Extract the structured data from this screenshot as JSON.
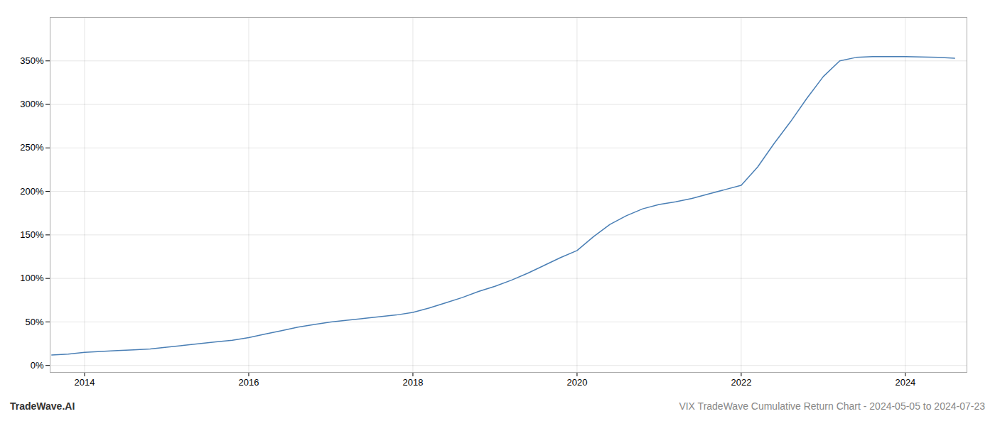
{
  "chart_data": {
    "type": "line",
    "title": "VIX TradeWave Cumulative Return Chart - 2024-05-05 to 2024-07-23",
    "annotations": [
      "TradeWave.AI"
    ],
    "x": [
      2013.6,
      2013.8,
      2014.0,
      2014.2,
      2014.4,
      2014.6,
      2014.8,
      2015.0,
      2015.2,
      2015.4,
      2015.6,
      2015.8,
      2016.0,
      2016.2,
      2016.4,
      2016.6,
      2016.8,
      2017.0,
      2017.2,
      2017.4,
      2017.6,
      2017.8,
      2018.0,
      2018.2,
      2018.4,
      2018.6,
      2018.8,
      2019.0,
      2019.2,
      2019.4,
      2019.6,
      2019.8,
      2020.0,
      2020.2,
      2020.4,
      2020.6,
      2020.8,
      2021.0,
      2021.2,
      2021.4,
      2021.6,
      2021.8,
      2022.0,
      2022.2,
      2022.4,
      2022.6,
      2022.8,
      2023.0,
      2023.2,
      2023.4,
      2023.6,
      2024.0,
      2024.4,
      2024.6
    ],
    "values": [
      12,
      13,
      15,
      16,
      17,
      18,
      19,
      21,
      23,
      25,
      27,
      29,
      32,
      36,
      40,
      44,
      47,
      50,
      52,
      54,
      56,
      58,
      61,
      66,
      72,
      78,
      85,
      91,
      98,
      106,
      115,
      124,
      132,
      148,
      162,
      172,
      180,
      185,
      188,
      192,
      197,
      202,
      207,
      228,
      255,
      280,
      307,
      332,
      350,
      354,
      355,
      355,
      354,
      353
    ],
    "color": "#4a7fb5",
    "xlim": [
      2013.58,
      2024.75
    ],
    "ylim": [
      -8,
      400
    ],
    "xticks": [
      2014,
      2016,
      2018,
      2020,
      2022,
      2024
    ],
    "yticks": [
      {
        "value": 0,
        "label": "0%"
      },
      {
        "value": 50,
        "label": "50%"
      },
      {
        "value": 100,
        "label": "100%"
      },
      {
        "value": 150,
        "label": "150%"
      },
      {
        "value": 200,
        "label": "200%"
      },
      {
        "value": 250,
        "label": "250%"
      },
      {
        "value": 300,
        "label": "300%"
      },
      {
        "value": 350,
        "label": "350%"
      }
    ],
    "grid": true
  }
}
